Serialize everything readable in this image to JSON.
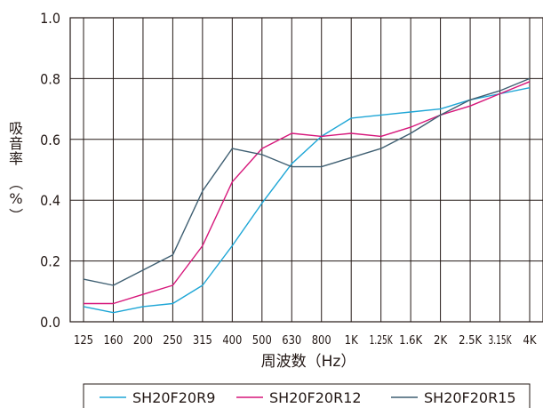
{
  "chart_data": {
    "type": "line",
    "ylabel_chars": [
      "吸",
      "音",
      "率",
      "（",
      "%",
      "）"
    ],
    "xlabel": "周波数（Hz）",
    "categories": [
      "125",
      "160",
      "200",
      "250",
      "315",
      "400",
      "500",
      "630",
      "800",
      "1K",
      "1.25K",
      "1.6K",
      "2K",
      "2.5K",
      "3.15K",
      "4K"
    ],
    "ylim": [
      0,
      1.0
    ],
    "yticks": [
      "0.0",
      "0.2",
      "0.4",
      "0.6",
      "0.8",
      "1.0"
    ],
    "grid": true,
    "legend_position": "bottom",
    "series": [
      {
        "name": "SH20F20R9",
        "color": "#1ea6d6",
        "values": [
          0.05,
          0.03,
          0.05,
          0.06,
          0.12,
          0.25,
          0.39,
          0.52,
          0.61,
          0.67,
          0.68,
          0.69,
          0.7,
          0.73,
          0.75,
          0.77
        ]
      },
      {
        "name": "SH20F20R12",
        "color": "#d6167a",
        "values": [
          0.06,
          0.06,
          0.09,
          0.12,
          0.25,
          0.46,
          0.57,
          0.62,
          0.61,
          0.62,
          0.61,
          0.64,
          0.68,
          0.71,
          0.75,
          0.79
        ]
      },
      {
        "name": "SH20F20R15",
        "color": "#3f5f72",
        "values": [
          0.14,
          0.12,
          0.17,
          0.22,
          0.43,
          0.57,
          0.55,
          0.51,
          0.51,
          0.54,
          0.57,
          0.62,
          0.68,
          0.73,
          0.76,
          0.8
        ]
      }
    ]
  }
}
